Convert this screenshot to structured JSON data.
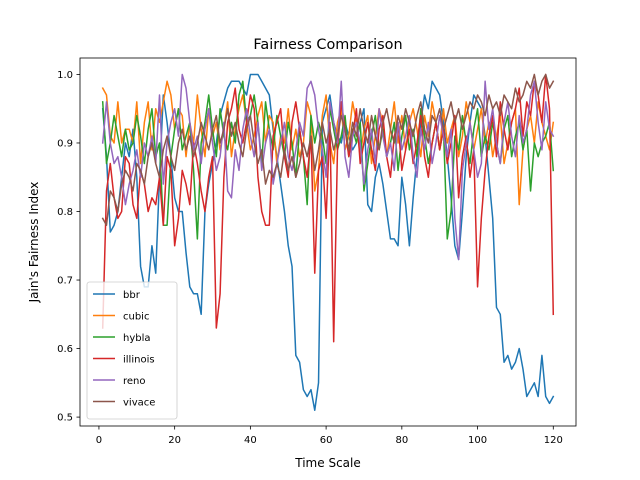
{
  "chart_data": {
    "type": "line",
    "title": "Fairness Comparison",
    "xlabel": "Time Scale",
    "ylabel": "Jain's Fairness Index",
    "xlim": [
      -5,
      126
    ],
    "ylim": [
      0.487,
      1.024
    ],
    "xticks": [
      0,
      20,
      40,
      60,
      80,
      100,
      120
    ],
    "yticks": [
      0.5,
      0.6,
      0.7,
      0.8,
      0.9,
      1.0
    ],
    "ytick_labels": [
      "0.5",
      "0.6",
      "0.7",
      "0.8",
      "0.9",
      "1.0"
    ],
    "grid": false,
    "legend_position": "lower-left",
    "x": [
      1,
      2,
      3,
      4,
      5,
      6,
      7,
      8,
      9,
      10,
      11,
      12,
      13,
      14,
      15,
      16,
      17,
      18,
      19,
      20,
      21,
      22,
      23,
      24,
      25,
      26,
      27,
      28,
      29,
      30,
      31,
      32,
      33,
      34,
      35,
      36,
      37,
      38,
      39,
      40,
      41,
      42,
      43,
      44,
      45,
      46,
      47,
      48,
      49,
      50,
      51,
      52,
      53,
      54,
      55,
      56,
      57,
      58,
      59,
      60,
      61,
      62,
      63,
      64,
      65,
      66,
      67,
      68,
      69,
      70,
      71,
      72,
      73,
      74,
      75,
      76,
      77,
      78,
      79,
      80,
      81,
      82,
      83,
      84,
      85,
      86,
      87,
      88,
      89,
      90,
      91,
      92,
      93,
      94,
      95,
      96,
      97,
      98,
      99,
      100,
      101,
      102,
      103,
      104,
      105,
      106,
      107,
      108,
      109,
      110,
      111,
      112,
      113,
      114,
      115,
      116,
      117,
      118,
      119,
      120
    ],
    "series": [
      {
        "name": "bbr",
        "color": "#1f77b4",
        "values": [
          0.95,
          0.88,
          0.77,
          0.78,
          0.8,
          0.85,
          0.9,
          0.88,
          0.92,
          0.85,
          0.72,
          0.69,
          0.69,
          0.75,
          0.71,
          0.85,
          0.97,
          0.93,
          0.88,
          0.82,
          0.8,
          0.8,
          0.74,
          0.69,
          0.68,
          0.68,
          0.65,
          0.8,
          0.84,
          0.87,
          0.9,
          0.94,
          0.96,
          0.98,
          0.99,
          0.99,
          0.99,
          0.98,
          0.97,
          1.0,
          1.0,
          1.0,
          0.99,
          0.98,
          0.97,
          0.92,
          0.88,
          0.84,
          0.8,
          0.75,
          0.72,
          0.59,
          0.58,
          0.54,
          0.53,
          0.54,
          0.51,
          0.55,
          0.93,
          0.95,
          0.97,
          0.93,
          0.91,
          0.9,
          0.93,
          0.91,
          0.89,
          0.9,
          0.93,
          0.95,
          0.81,
          0.8,
          0.85,
          0.87,
          0.84,
          0.8,
          0.76,
          0.76,
          0.75,
          0.85,
          0.81,
          0.75,
          0.82,
          0.88,
          0.93,
          0.97,
          0.95,
          0.99,
          0.98,
          0.97,
          0.93,
          0.88,
          0.82,
          0.75,
          0.73,
          0.8,
          0.88,
          0.93,
          0.97,
          0.96,
          0.95,
          0.91,
          0.85,
          0.79,
          0.66,
          0.65,
          0.58,
          0.59,
          0.57,
          0.58,
          0.6,
          0.57,
          0.53,
          0.54,
          0.55,
          0.53,
          0.59,
          0.53,
          0.52,
          0.53
        ]
      },
      {
        "name": "cubic",
        "color": "#ff7f0e",
        "values": [
          0.98,
          0.97,
          0.91,
          0.9,
          0.96,
          0.9,
          0.92,
          0.92,
          0.9,
          0.96,
          0.87,
          0.93,
          0.96,
          0.89,
          0.95,
          0.93,
          0.96,
          0.99,
          0.97,
          0.92,
          0.95,
          0.94,
          0.88,
          0.93,
          0.9,
          0.97,
          0.92,
          0.88,
          0.95,
          0.91,
          0.93,
          0.89,
          0.92,
          0.96,
          0.88,
          0.92,
          0.95,
          0.97,
          0.93,
          0.89,
          0.91,
          0.94,
          0.96,
          0.9,
          0.94,
          0.93,
          0.87,
          0.91,
          0.9,
          0.95,
          0.89,
          0.92,
          0.88,
          0.9,
          0.96,
          0.94,
          0.83,
          0.86,
          0.94,
          0.97,
          0.9,
          0.87,
          0.93,
          0.95,
          0.89,
          0.91,
          0.96,
          0.93,
          0.88,
          0.92,
          0.94,
          0.87,
          0.91,
          0.95,
          0.93,
          0.88,
          0.92,
          0.96,
          0.9,
          0.94,
          0.89,
          0.93,
          0.95,
          0.92,
          0.88,
          0.94,
          0.91,
          0.96,
          0.93,
          0.89,
          0.95,
          0.9,
          0.92,
          0.94,
          0.88,
          0.91,
          0.96,
          0.93,
          0.89,
          0.92,
          0.95,
          0.9,
          0.93,
          0.88,
          0.91,
          0.94,
          0.87,
          0.9,
          0.93,
          0.95,
          0.81,
          0.89,
          0.92,
          0.94,
          0.9,
          0.96,
          0.93,
          0.91,
          0.89,
          0.93
        ]
      },
      {
        "name": "hybla",
        "color": "#2ca02c",
        "values": [
          0.96,
          0.87,
          0.9,
          0.94,
          0.91,
          0.88,
          0.92,
          0.89,
          0.9,
          0.94,
          0.91,
          0.87,
          0.92,
          0.95,
          0.88,
          0.9,
          0.78,
          0.78,
          0.88,
          0.92,
          0.95,
          0.89,
          0.91,
          0.93,
          0.86,
          0.76,
          0.9,
          0.93,
          0.97,
          0.92,
          0.88,
          0.95,
          0.91,
          0.89,
          0.93,
          0.9,
          0.97,
          0.99,
          0.93,
          0.94,
          0.97,
          0.93,
          0.87,
          0.96,
          0.92,
          0.89,
          0.94,
          0.91,
          0.88,
          0.93,
          0.9,
          0.85,
          0.92,
          0.88,
          0.81,
          0.94,
          0.9,
          0.93,
          0.91,
          0.87,
          0.95,
          0.92,
          0.89,
          0.91,
          0.94,
          0.88,
          0.92,
          0.9,
          0.93,
          0.83,
          0.87,
          0.91,
          0.94,
          0.89,
          0.92,
          0.88,
          0.9,
          0.93,
          0.86,
          0.91,
          0.94,
          0.89,
          0.92,
          0.88,
          0.95,
          0.91,
          0.87,
          0.9,
          0.93,
          0.89,
          0.92,
          0.76,
          0.8,
          0.91,
          0.89,
          0.94,
          0.9,
          0.87,
          0.92,
          0.95,
          0.88,
          0.91,
          0.89,
          0.93,
          0.9,
          0.87,
          0.92,
          0.94,
          0.88,
          0.91,
          0.93,
          0.89,
          0.92,
          0.83,
          0.9,
          0.88,
          0.9,
          0.91,
          0.93,
          0.86
        ]
      },
      {
        "name": "illinois",
        "color": "#d62728",
        "values": [
          0.63,
          0.83,
          0.87,
          0.82,
          0.79,
          0.8,
          0.88,
          0.87,
          0.81,
          0.79,
          0.86,
          0.84,
          0.8,
          0.82,
          0.81,
          0.85,
          0.78,
          0.88,
          0.86,
          0.75,
          0.79,
          0.86,
          0.84,
          0.81,
          0.9,
          0.87,
          0.83,
          0.8,
          0.85,
          0.88,
          0.63,
          0.68,
          0.85,
          0.93,
          0.95,
          0.98,
          0.92,
          0.9,
          0.93,
          0.97,
          0.95,
          0.85,
          0.8,
          0.78,
          0.78,
          0.91,
          0.93,
          0.95,
          0.88,
          0.85,
          0.93,
          0.96,
          0.92,
          0.88,
          0.85,
          0.91,
          0.71,
          0.86,
          0.88,
          0.79,
          0.93,
          0.61,
          0.89,
          0.96,
          0.92,
          0.88,
          0.91,
          0.95,
          0.87,
          0.9,
          0.93,
          0.89,
          0.86,
          0.92,
          0.94,
          0.88,
          0.85,
          0.91,
          0.93,
          0.86,
          0.89,
          0.92,
          0.87,
          0.9,
          0.94,
          0.88,
          0.85,
          0.9,
          0.93,
          0.89,
          0.92,
          0.87,
          0.9,
          0.94,
          0.82,
          0.88,
          0.91,
          0.85,
          0.89,
          0.69,
          0.79,
          0.86,
          0.91,
          0.94,
          0.88,
          0.96,
          0.92,
          0.89,
          0.93,
          0.95,
          0.98,
          0.91,
          0.96,
          0.94,
          0.99,
          0.97,
          0.93,
          1.0,
          0.95,
          0.65
        ]
      },
      {
        "name": "reno",
        "color": "#9467bd",
        "values": [
          0.9,
          0.96,
          0.9,
          0.87,
          0.88,
          0.85,
          0.81,
          0.84,
          0.86,
          0.89,
          0.85,
          0.9,
          0.88,
          0.91,
          0.87,
          0.97,
          0.84,
          0.9,
          0.93,
          0.95,
          0.91,
          1.0,
          0.98,
          0.93,
          0.89,
          0.91,
          0.87,
          0.92,
          0.95,
          0.9,
          0.86,
          0.88,
          0.93,
          0.83,
          0.82,
          0.89,
          0.86,
          0.92,
          0.95,
          0.91,
          0.88,
          0.93,
          0.86,
          0.9,
          0.92,
          0.84,
          0.87,
          0.9,
          0.93,
          0.88,
          0.86,
          0.89,
          0.93,
          0.91,
          0.98,
          0.99,
          0.97,
          0.92,
          0.89,
          0.85,
          0.96,
          0.93,
          0.9,
          0.99,
          0.88,
          0.85,
          0.91,
          0.93,
          0.9,
          0.84,
          0.89,
          0.92,
          0.87,
          0.95,
          0.91,
          0.88,
          0.9,
          0.86,
          0.93,
          0.89,
          0.91,
          0.94,
          0.88,
          0.85,
          0.92,
          0.89,
          0.93,
          0.87,
          0.9,
          0.94,
          0.91,
          0.88,
          0.92,
          0.79,
          0.73,
          0.86,
          0.9,
          0.93,
          0.89,
          0.85,
          0.87,
          0.99,
          0.92,
          0.95,
          0.9,
          0.87,
          0.93,
          0.96,
          0.91,
          0.88,
          0.94,
          0.9,
          0.92,
          0.97,
          0.99,
          0.93,
          0.89,
          0.96,
          0.92,
          0.91
        ]
      },
      {
        "name": "vivace",
        "color": "#8c564b",
        "values": [
          0.79,
          0.78,
          0.83,
          0.82,
          0.8,
          0.84,
          0.86,
          0.85,
          0.83,
          0.87,
          0.86,
          0.84,
          0.88,
          0.9,
          0.87,
          0.85,
          0.89,
          0.91,
          0.88,
          0.86,
          0.9,
          0.92,
          0.89,
          0.91,
          0.88,
          0.9,
          0.93,
          0.91,
          0.89,
          0.92,
          0.94,
          0.9,
          0.92,
          0.95,
          0.91,
          0.93,
          0.9,
          0.88,
          0.92,
          0.94,
          0.9,
          0.87,
          0.89,
          0.84,
          0.86,
          0.85,
          0.87,
          0.85,
          0.89,
          0.86,
          0.88,
          0.85,
          0.87,
          0.9,
          0.88,
          0.91,
          0.86,
          0.89,
          0.93,
          0.9,
          0.92,
          0.89,
          0.91,
          0.94,
          0.92,
          0.89,
          0.93,
          0.91,
          0.95,
          0.92,
          0.9,
          0.94,
          0.91,
          0.89,
          0.93,
          0.95,
          0.92,
          0.9,
          0.94,
          0.92,
          0.95,
          0.93,
          0.91,
          0.94,
          0.96,
          0.92,
          0.9,
          0.94,
          0.93,
          0.95,
          0.92,
          0.94,
          0.96,
          0.93,
          0.95,
          0.92,
          0.94,
          0.96,
          0.95,
          0.97,
          0.96,
          0.94,
          0.97,
          0.95,
          0.96,
          0.94,
          0.97,
          0.96,
          0.95,
          0.98,
          0.96,
          0.97,
          0.99,
          0.98,
          1.0,
          0.97,
          0.99,
          1.0,
          0.98,
          0.99
        ]
      }
    ]
  }
}
